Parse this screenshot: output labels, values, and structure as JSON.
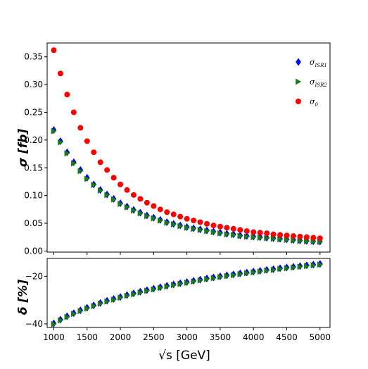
{
  "chart_data": [
    {
      "type": "scatter",
      "panel": "top",
      "ylabel": "σ [fb]",
      "xlabel": "",
      "xlim": [
        900,
        5150
      ],
      "ylim": [
        -0.002,
        0.375
      ],
      "xticks": [
        1000,
        1500,
        2000,
        2500,
        3000,
        3500,
        4000,
        4500,
        5000
      ],
      "yticks": [
        0.0,
        0.05,
        0.1,
        0.15,
        0.2,
        0.25,
        0.3,
        0.35
      ],
      "ytick_labels": [
        "0.00",
        "0.05",
        "0.10",
        "0.15",
        "0.20",
        "0.25",
        "0.30",
        "0.35"
      ],
      "legend_position": "top-right",
      "x": [
        1000,
        1100,
        1200,
        1300,
        1400,
        1500,
        1600,
        1700,
        1800,
        1900,
        2000,
        2100,
        2200,
        2300,
        2400,
        2500,
        2600,
        2700,
        2800,
        2900,
        3000,
        3100,
        3200,
        3300,
        3400,
        3500,
        3600,
        3700,
        3800,
        3900,
        4000,
        4100,
        4200,
        4300,
        4400,
        4500,
        4600,
        4700,
        4800,
        4900,
        5000
      ],
      "series": [
        {
          "name": "σISR1",
          "legend_main": "σ",
          "legend_sub": "ISR1",
          "marker": "diamond",
          "color": "#0000ff",
          "values": [
            0.218,
            0.198,
            0.178,
            0.16,
            0.146,
            0.132,
            0.12,
            0.11,
            0.102,
            0.094,
            0.086,
            0.08,
            0.074,
            0.069,
            0.064,
            0.06,
            0.056,
            0.052,
            0.049,
            0.046,
            0.043,
            0.041,
            0.039,
            0.037,
            0.035,
            0.033,
            0.031,
            0.03,
            0.028,
            0.027,
            0.026,
            0.025,
            0.024,
            0.023,
            0.022,
            0.021,
            0.02,
            0.019,
            0.018,
            0.0175,
            0.017
          ]
        },
        {
          "name": "σISR2",
          "legend_main": "σ",
          "legend_sub": "ISR2",
          "marker": "triangle-right",
          "color": "#1a7a1a",
          "values": [
            0.216,
            0.196,
            0.176,
            0.158,
            0.144,
            0.13,
            0.119,
            0.109,
            0.101,
            0.093,
            0.085,
            0.079,
            0.073,
            0.068,
            0.063,
            0.059,
            0.055,
            0.051,
            0.048,
            0.045,
            0.042,
            0.04,
            0.038,
            0.036,
            0.034,
            0.032,
            0.03,
            0.029,
            0.027,
            0.026,
            0.025,
            0.024,
            0.023,
            0.022,
            0.021,
            0.02,
            0.019,
            0.018,
            0.0175,
            0.017,
            0.0165
          ]
        },
        {
          "name": "σ0",
          "legend_main": "σ",
          "legend_sub": "0",
          "marker": "circle",
          "color": "#ff0000",
          "values": [
            0.362,
            0.32,
            0.282,
            0.25,
            0.222,
            0.198,
            0.178,
            0.16,
            0.146,
            0.132,
            0.12,
            0.11,
            0.101,
            0.094,
            0.087,
            0.081,
            0.075,
            0.07,
            0.066,
            0.062,
            0.058,
            0.055,
            0.052,
            0.049,
            0.046,
            0.044,
            0.042,
            0.04,
            0.038,
            0.036,
            0.034,
            0.033,
            0.032,
            0.03,
            0.029,
            0.028,
            0.027,
            0.026,
            0.025,
            0.024,
            0.023
          ]
        }
      ]
    },
    {
      "type": "scatter",
      "panel": "bottom",
      "ylabel": "δ [%]",
      "xlabel": "√s [GeV]",
      "xlim": [
        900,
        5150
      ],
      "ylim": [
        -41.5,
        -12.5
      ],
      "xticks": [
        1000,
        1500,
        2000,
        2500,
        3000,
        3500,
        4000,
        4500,
        5000
      ],
      "xtick_labels": [
        "1000",
        "1500",
        "2000",
        "2500",
        "3000",
        "3500",
        "4000",
        "4500",
        "5000"
      ],
      "yticks": [
        -20,
        -40
      ],
      "ytick_labels": [
        "−20",
        "−40"
      ],
      "x": [
        1000,
        1100,
        1200,
        1300,
        1400,
        1500,
        1600,
        1700,
        1800,
        1900,
        2000,
        2100,
        2200,
        2300,
        2400,
        2500,
        2600,
        2700,
        2800,
        2900,
        3000,
        3100,
        3200,
        3300,
        3400,
        3500,
        3600,
        3700,
        3800,
        3900,
        4000,
        4100,
        4200,
        4300,
        4400,
        4500,
        4600,
        4700,
        4800,
        4900,
        5000
      ],
      "series": [
        {
          "name": "δISR1",
          "marker": "diamond",
          "color": "#0000ff",
          "values": [
            -39.8,
            -38.2,
            -36.8,
            -35.5,
            -34.3,
            -33.2,
            -32.2,
            -31.2,
            -30.3,
            -29.5,
            -28.7,
            -27.9,
            -27.2,
            -26.5,
            -25.8,
            -25.2,
            -24.6,
            -24.0,
            -23.4,
            -22.9,
            -22.4,
            -21.9,
            -21.4,
            -20.9,
            -20.5,
            -20.0,
            -19.6,
            -19.2,
            -18.8,
            -18.4,
            -18.0,
            -17.7,
            -17.3,
            -17.0,
            -16.6,
            -16.3,
            -16.0,
            -15.7,
            -15.4,
            -15.1,
            -14.8
          ]
        },
        {
          "name": "δISR2",
          "marker": "triangle-right",
          "color": "#1a7a1a",
          "values": [
            -40.1,
            -38.5,
            -37.1,
            -35.8,
            -34.6,
            -33.5,
            -32.5,
            -31.5,
            -30.6,
            -29.8,
            -29.0,
            -28.2,
            -27.5,
            -26.8,
            -26.1,
            -25.5,
            -24.9,
            -24.3,
            -23.7,
            -23.2,
            -22.7,
            -22.2,
            -21.7,
            -21.2,
            -20.8,
            -20.3,
            -19.9,
            -19.5,
            -19.1,
            -18.7,
            -18.3,
            -18.0,
            -17.6,
            -17.3,
            -16.9,
            -16.6,
            -16.3,
            -16.0,
            -15.7,
            -15.4,
            -15.1
          ]
        }
      ]
    }
  ]
}
